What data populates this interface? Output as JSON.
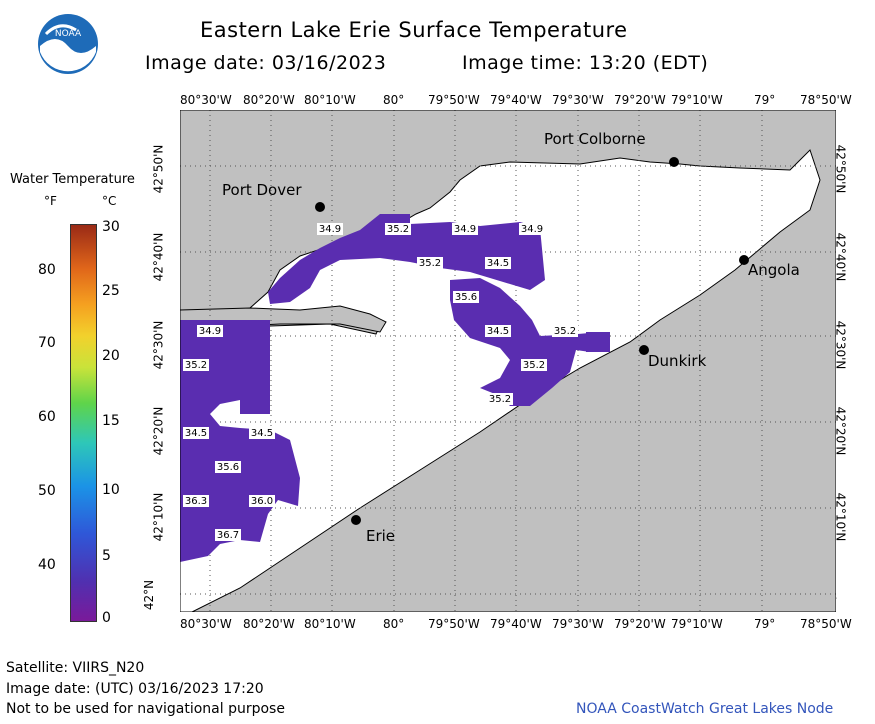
{
  "header": {
    "title": "Eastern Lake Erie Surface Temperature",
    "date_label": "Image date: 03/16/2023",
    "time_label": "Image time: 13:20 (EDT)"
  },
  "logo": {
    "text": "NOAA"
  },
  "legend": {
    "title": "Water Temperature",
    "unit_f": "°F",
    "unit_c": "°C",
    "f_ticks": [
      "80",
      "70",
      "60",
      "50",
      "40"
    ],
    "c_ticks": [
      "30",
      "25",
      "20",
      "15",
      "10",
      "5",
      "0"
    ]
  },
  "axes": {
    "lon_labels": [
      "80°30'W",
      "80°20'W",
      "80°10'W",
      "80°",
      "79°50'W",
      "79°40'W",
      "79°30'W",
      "79°20'W",
      "79°10'W",
      "79°",
      "78°50'W"
    ],
    "lat_labels": [
      "42°50'N",
      "42°40'N",
      "42°30'N",
      "42°20'N",
      "42°10'N",
      "42°N"
    ]
  },
  "cities": [
    {
      "name": "Port Colborne"
    },
    {
      "name": "Port Dover"
    },
    {
      "name": "Angola"
    },
    {
      "name": "Dunkirk"
    },
    {
      "name": "Erie"
    }
  ],
  "temps": [
    "34.9",
    "35.2",
    "34.9",
    "34.9",
    "35.2",
    "34.5",
    "35.6",
    "34.5",
    "35.2",
    "35.2",
    "35.2",
    "34.9",
    "35.2",
    "34.5",
    "34.5",
    "35.6",
    "36.3",
    "36.0",
    "36.7"
  ],
  "colors": {
    "land": "#c0c0c0",
    "water_cold": "#5a2db0",
    "grid": "#555555"
  },
  "footer": {
    "satellite": "Satellite: VIIRS_N20",
    "utc_date": "Image date: (UTC) 03/16/2023  17:20",
    "disclaimer": "Not to be used for navigational purpose",
    "node": "NOAA CoastWatch Great Lakes Node"
  }
}
